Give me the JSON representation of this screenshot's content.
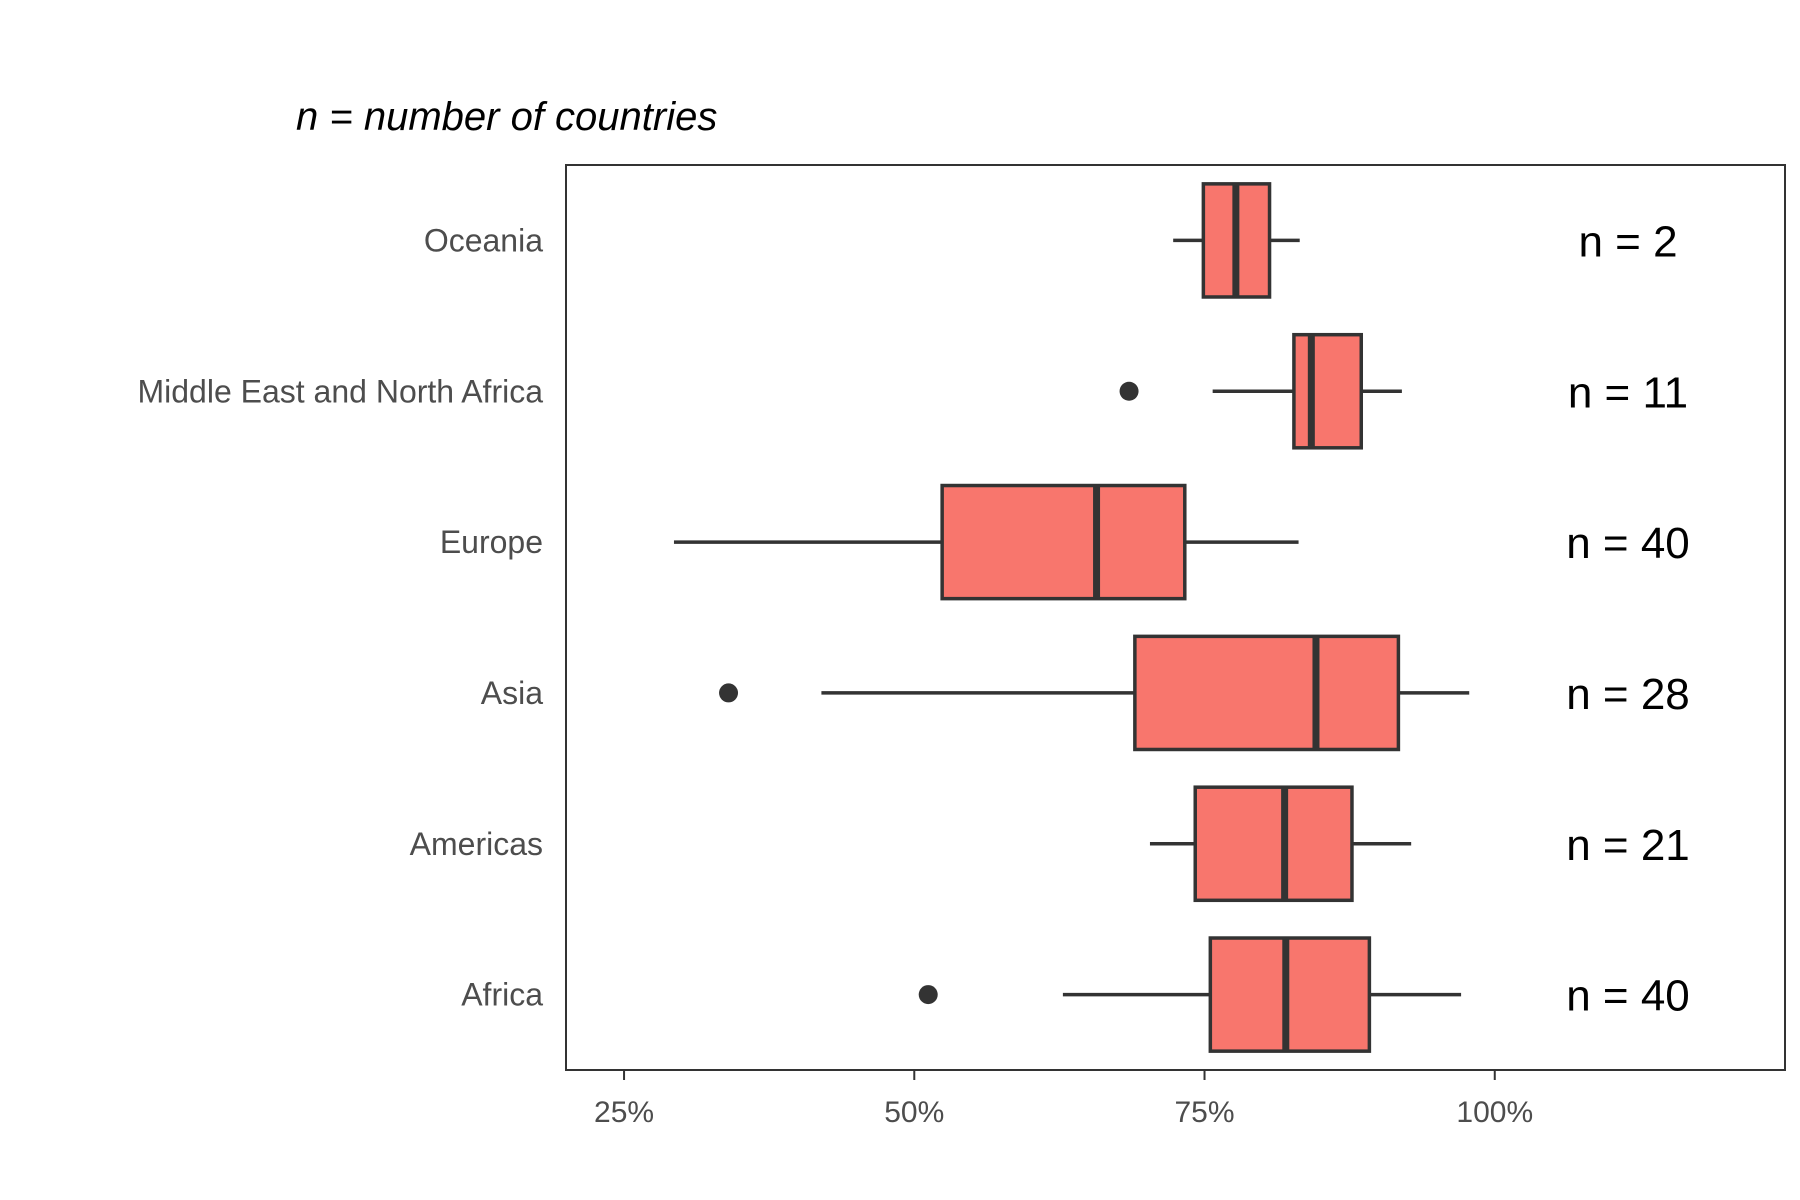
{
  "chart_data": {
    "type": "boxplot",
    "orientation": "horizontal",
    "subtitle": "n = number of countries",
    "xlabel": "",
    "ylabel": "",
    "xlim": [
      20,
      125
    ],
    "x_ticks": [
      25,
      50,
      75,
      100
    ],
    "x_tick_labels": [
      "25%",
      "50%",
      "75%",
      "100%"
    ],
    "grid": false,
    "legend": "none",
    "box_fill": "#F8766D",
    "line_color": "#333333",
    "categories": [
      "Oceania",
      "Middle East and North Africa",
      "Europe",
      "Asia",
      "Americas",
      "Africa"
    ],
    "series": [
      {
        "category": "Oceania",
        "whisker_low": 72.3,
        "q1": 74.9,
        "median": 77.7,
        "q3": 80.6,
        "whisker_high": 83.2,
        "outliers": [],
        "n_label": "n = 2"
      },
      {
        "category": "Middle East and North Africa",
        "whisker_low": 75.7,
        "q1": 82.7,
        "median": 84.2,
        "q3": 88.5,
        "whisker_high": 92.0,
        "outliers": [
          68.5
        ],
        "n_label": "n = 11"
      },
      {
        "category": "Europe",
        "whisker_low": 29.3,
        "q1": 52.4,
        "median": 65.7,
        "q3": 73.3,
        "whisker_high": 83.1,
        "outliers": [],
        "n_label": "n = 40"
      },
      {
        "category": "Asia",
        "whisker_low": 42.0,
        "q1": 69.0,
        "median": 84.6,
        "q3": 91.7,
        "whisker_high": 97.8,
        "outliers": [
          34.0
        ],
        "n_label": "n = 28"
      },
      {
        "category": "Americas",
        "whisker_low": 70.3,
        "q1": 74.2,
        "median": 81.9,
        "q3": 87.7,
        "whisker_high": 92.8,
        "outliers": [],
        "n_label": "n = 21"
      },
      {
        "category": "Africa",
        "whisker_low": 62.8,
        "q1": 75.5,
        "median": 82.0,
        "q3": 89.2,
        "whisker_high": 97.1,
        "outliers": [
          51.2
        ],
        "n_label": "n = 40"
      }
    ]
  }
}
